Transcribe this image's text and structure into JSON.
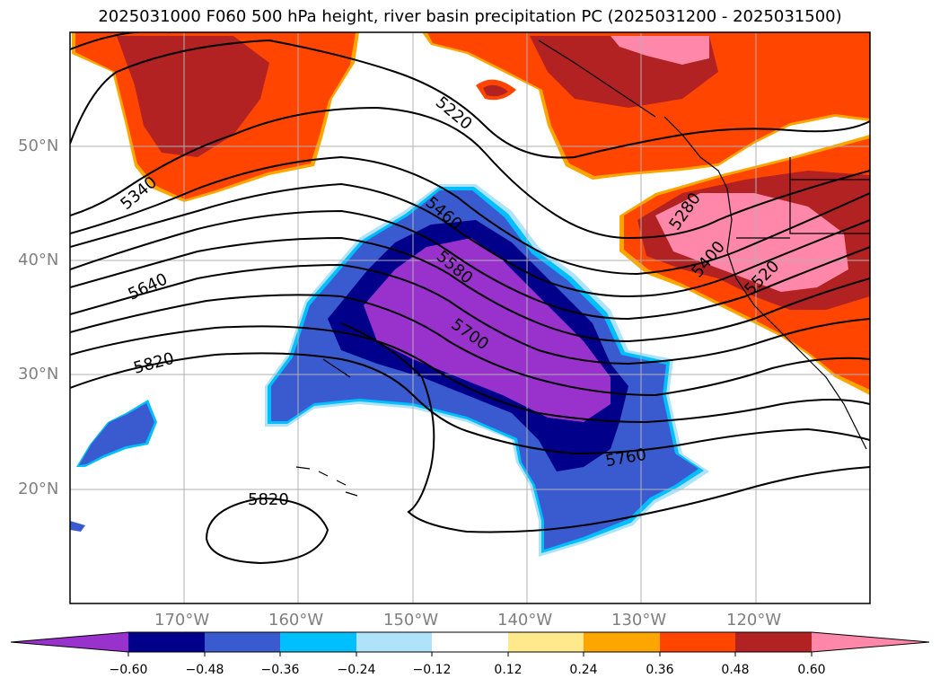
{
  "title": "2025031000 F060 500 hPa height, river basin precipitation PC (2025031200 - 2025031500)",
  "lat_labels": [
    "50°N",
    "40°N",
    "30°N",
    "20°N"
  ],
  "lon_labels": [
    "170°W",
    "160°W",
    "150°W",
    "140°W",
    "130°W",
    "120°W"
  ],
  "contour_labels": [
    "5220",
    "5340",
    "5460",
    "5580",
    "5700",
    "5640",
    "5820",
    "5280",
    "5400",
    "5520",
    "5760",
    "5820"
  ],
  "colorbar": {
    "tick_labels": [
      "−0.60",
      "−0.48",
      "−0.36",
      "−0.24",
      "−0.12",
      "0.12",
      "0.24",
      "0.36",
      "0.48",
      "0.60"
    ],
    "colors": [
      "#9932cc",
      "#00008b",
      "#3a5bcf",
      "#00bfff",
      "#aee3fa",
      "#ffffff",
      "#ffe98a",
      "#ffa500",
      "#ff4500",
      "#b22222",
      "#ff88aa"
    ]
  }
}
